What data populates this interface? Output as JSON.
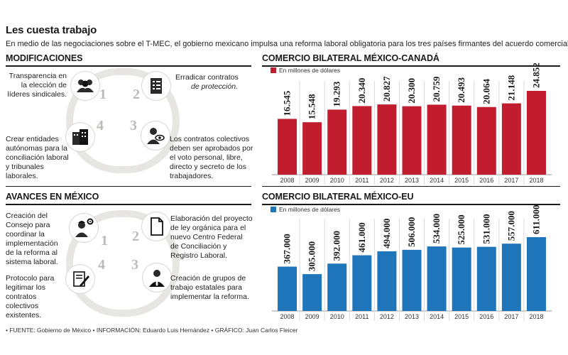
{
  "header": {
    "title": "Les cuesta trabajo",
    "subtitle": "En medio de las negociaciones sobre el T-MEC, el gobierno mexicano impulsa una reforma laboral obligatoria para los tres países firmantes del acuerdo comercial."
  },
  "modificaciones": {
    "heading": "MODIFICACIONES",
    "numbers": [
      "1",
      "2",
      "3",
      "4"
    ],
    "items": [
      {
        "text": "Transparencia en la elección de líderes sindicales.",
        "icon": "people-icon"
      },
      {
        "text_main": "Erradicar contratos",
        "text_italic": "de protección.",
        "icon": "checklist-icon"
      },
      {
        "text": "Los contratos colectivos deben ser aprobados por el voto personal, libre, directo y secreto de los trabajadores.",
        "icon": "eye-person-icon"
      },
      {
        "text": "Crear entidades autónomas para la conciliación laboral y tribunales laborales.",
        "icon": "buildings-icon"
      }
    ]
  },
  "avances": {
    "heading": "AVANCES EN MÉXICO",
    "numbers": [
      "1",
      "2",
      "3",
      "4"
    ],
    "items": [
      {
        "text": "Creación del Consejo para coordinar la implementación de la reforma al sistema laboral.",
        "icon": "worker-gear-icon"
      },
      {
        "text": "Elaboración del proyecto de ley orgánica para el nuevo Centro Federal de Conciliación y Registro Laboral.",
        "icon": "document-icon"
      },
      {
        "text": "Creación de grupos de trabajo estatales para implementar la reforma.",
        "icon": "businessman-icon"
      },
      {
        "text": "Protocolo para legitimar los contratos colectivos existentes.",
        "icon": "signing-icon"
      }
    ]
  },
  "colors": {
    "canada": "#c11d2f",
    "eu": "#1f75b9",
    "ring": "#e8e6e3"
  },
  "chart_data": [
    {
      "type": "bar",
      "title": "COMERCIO BILATERAL MÉXICO-CANADÁ",
      "legend": "En millones de dólares",
      "categories": [
        "2008",
        "2009",
        "2010",
        "2011",
        "2012",
        "2013",
        "2014",
        "2015",
        "2016",
        "2017",
        "2018"
      ],
      "values": [
        16545,
        15548,
        19293,
        20340,
        20827,
        20300,
        20759,
        20493,
        20064,
        21148,
        24852
      ],
      "value_labels": [
        "16.545",
        "15.548",
        "19.293",
        "20.340",
        "20.827",
        "20.300",
        "20.759",
        "20.493",
        "20.064",
        "21.148",
        "24.852"
      ],
      "color": "#c11d2f",
      "grid": false
    },
    {
      "type": "bar",
      "title": "COMERCIO BILATERAL MÉXICO-EU",
      "legend": "En millones de dólares",
      "categories": [
        "2008",
        "2009",
        "2010",
        "2011",
        "2012",
        "2013",
        "2014",
        "2015",
        "2016",
        "2017",
        "2018"
      ],
      "values": [
        367000,
        305000,
        392000,
        461000,
        494000,
        506000,
        534000,
        525000,
        531000,
        557000,
        611000
      ],
      "value_labels": [
        "367.000",
        "305.000",
        "392.000",
        "461.000",
        "494.000",
        "506.000",
        "534.000",
        "525.000",
        "531.000",
        "557.000",
        "611.000"
      ],
      "color": "#1f75b9",
      "grid": false
    }
  ],
  "footer": "• FUENTE: Gobierno de México • INFORMACIÓN: Eduardo Luis Hernández • GRÁFICO: Juan Carlos Fleicer"
}
